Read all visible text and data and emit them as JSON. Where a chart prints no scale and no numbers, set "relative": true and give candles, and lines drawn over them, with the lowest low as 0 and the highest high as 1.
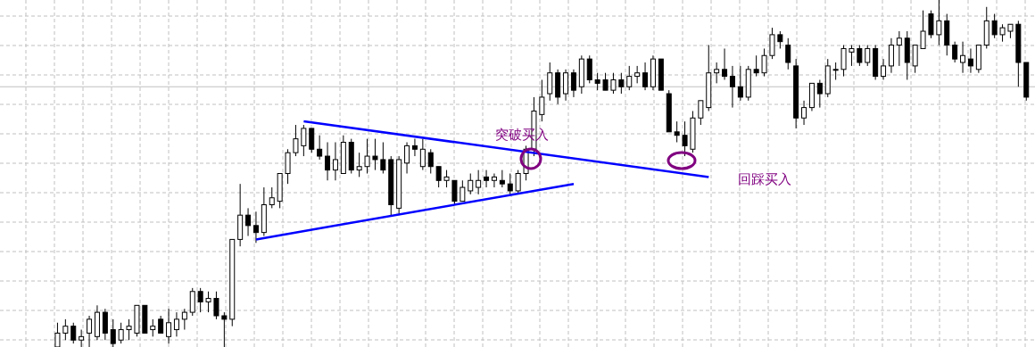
{
  "chart_data": {
    "type": "candlestick",
    "relative": true,
    "grid": true,
    "categories": [
      null,
      null,
      null,
      null,
      null,
      null,
      null,
      null,
      null,
      null,
      null,
      null,
      null,
      null,
      null,
      null,
      null,
      null,
      null,
      null,
      null,
      null,
      null,
      null,
      null,
      null,
      null,
      null,
      null,
      null,
      null,
      null,
      null,
      null,
      null,
      null,
      null,
      null,
      null,
      null,
      null,
      null,
      null,
      null,
      null,
      null,
      null,
      null,
      null,
      null,
      null,
      null,
      null,
      null,
      null,
      null,
      null,
      null,
      null,
      null,
      null,
      null,
      null,
      null,
      null,
      null,
      null,
      null,
      null,
      null,
      null,
      null,
      null,
      null,
      null,
      null,
      null,
      null,
      null,
      null,
      null,
      null,
      null,
      null,
      null,
      null,
      null,
      null,
      null,
      null,
      null,
      null,
      null,
      null,
      null,
      null,
      null,
      null,
      null,
      null,
      null,
      null,
      null,
      null,
      null,
      null,
      null,
      null,
      null,
      null,
      null,
      null,
      null,
      null,
      null,
      null,
      null,
      null,
      null,
      null,
      null,
      null,
      null
    ],
    "ohlc": [
      [
        0,
        0.07,
        0,
        0.04
      ],
      [
        0.04,
        0.08,
        0.02,
        0.06
      ],
      [
        0.06,
        0.07,
        0.01,
        0.02
      ],
      [
        0.02,
        0.05,
        0,
        0.03
      ],
      [
        0.04,
        0.09,
        0,
        0.08
      ],
      [
        0.03,
        0.12,
        0.02,
        0.1
      ],
      [
        0.1,
        0.11,
        0.02,
        0.04
      ],
      [
        0.05,
        0.08,
        0,
        0.01
      ],
      [
        0.02,
        0.07,
        0.01,
        0.05
      ],
      [
        0.05,
        0.08,
        0.02,
        0.06
      ],
      [
        0.04,
        0.12,
        0.03,
        0.12
      ],
      [
        0.12,
        0.12,
        0.04,
        0.04
      ],
      [
        0.05,
        0.08,
        0.03,
        0.06
      ],
      [
        0.08,
        0.09,
        0.04,
        0.04
      ],
      [
        0.03,
        0.11,
        0.01,
        0.07
      ],
      [
        0.05,
        0.1,
        0.03,
        0.08
      ],
      [
        0.08,
        0.11,
        0.05,
        0.1
      ],
      [
        0.1,
        0.17,
        0.09,
        0.16
      ],
      [
        0.16,
        0.17,
        0.1,
        0.13
      ],
      [
        0.13,
        0.16,
        0.1,
        0.14
      ],
      [
        0.14,
        0.16,
        0.08,
        0.09
      ],
      [
        0.09,
        0.1,
        0,
        0.08
      ],
      [
        0.08,
        0.31,
        0.06,
        0.31
      ],
      [
        0.31,
        0.47,
        0.29,
        0.38
      ],
      [
        0.38,
        0.4,
        0.32,
        0.35
      ],
      [
        0.35,
        0.39,
        0.3,
        0.33
      ],
      [
        0.33,
        0.46,
        0.32,
        0.41
      ],
      [
        0.41,
        0.46,
        0.4,
        0.43
      ],
      [
        0.42,
        0.5,
        0.4,
        0.5
      ],
      [
        0.5,
        0.57,
        0.47,
        0.56
      ],
      [
        0.56,
        0.64,
        0.55,
        0.6
      ],
      [
        0.58,
        0.64,
        0.55,
        0.63
      ],
      [
        0.63,
        0.63,
        0.56,
        0.57
      ],
      [
        0.57,
        0.61,
        0.54,
        0.55
      ],
      [
        0.55,
        0.59,
        0.48,
        0.51
      ],
      [
        0.51,
        0.59,
        0.48,
        0.54
      ],
      [
        0.5,
        0.61,
        0.5,
        0.59
      ],
      [
        0.59,
        0.6,
        0.5,
        0.51
      ],
      [
        0.51,
        0.56,
        0.49,
        0.52
      ],
      [
        0.52,
        0.6,
        0.5,
        0.55
      ],
      [
        0.55,
        0.6,
        0.51,
        0.54
      ],
      [
        0.54,
        0.59,
        0.5,
        0.51
      ],
      [
        0.54,
        0.55,
        0.38,
        0.41
      ],
      [
        0.4,
        0.55,
        0.38,
        0.54
      ],
      [
        0.53,
        0.59,
        0.5,
        0.58
      ],
      [
        0.58,
        0.6,
        0.55,
        0.57
      ],
      [
        0.52,
        0.6,
        0.51,
        0.57
      ],
      [
        0.56,
        0.57,
        0.5,
        0.52
      ],
      [
        0.52,
        0.52,
        0.46,
        0.48
      ],
      [
        0.48,
        0.51,
        0.46,
        0.49
      ],
      [
        0.48,
        0.48,
        0.41,
        0.42
      ],
      [
        0.42,
        0.48,
        0.42,
        0.46
      ],
      [
        0.45,
        0.5,
        0.44,
        0.48
      ],
      [
        0.46,
        0.51,
        0.44,
        0.48
      ],
      [
        0.49,
        0.51,
        0.46,
        0.48
      ],
      [
        0.48,
        0.5,
        0.46,
        0.49
      ],
      [
        0.48,
        0.51,
        0.46,
        0.47
      ],
      [
        0.47,
        0.5,
        0.44,
        0.45
      ],
      [
        0.45,
        0.51,
        0.44,
        0.5
      ],
      [
        0.5,
        0.58,
        0.48,
        0.57
      ],
      [
        0.57,
        0.72,
        0.55,
        0.68
      ],
      [
        0.67,
        0.77,
        0.65,
        0.72
      ],
      [
        0.73,
        0.82,
        0.71,
        0.79
      ],
      [
        0.79,
        0.8,
        0.7,
        0.72
      ],
      [
        0.73,
        0.8,
        0.71,
        0.79
      ],
      [
        0.79,
        0.8,
        0.72,
        0.74
      ],
      [
        0.75,
        0.84,
        0.73,
        0.83
      ],
      [
        0.83,
        0.84,
        0.76,
        0.77
      ],
      [
        0.77,
        0.79,
        0.74,
        0.76
      ],
      [
        0.77,
        0.79,
        0.74,
        0.74
      ],
      [
        0.74,
        0.79,
        0.73,
        0.77
      ],
      [
        0.77,
        0.79,
        0.73,
        0.75
      ],
      [
        0.75,
        0.81,
        0.74,
        0.78
      ],
      [
        0.78,
        0.81,
        0.76,
        0.79
      ],
      [
        0.79,
        0.82,
        0.74,
        0.75
      ],
      [
        0.75,
        0.84,
        0.74,
        0.83
      ],
      [
        0.83,
        0.83,
        0.74,
        0.74
      ],
      [
        0.73,
        0.74,
        0.62,
        0.62
      ],
      [
        0.62,
        0.65,
        0.59,
        0.61
      ],
      [
        0.61,
        0.65,
        0.55,
        0.58
      ],
      [
        0.57,
        0.68,
        0.56,
        0.66
      ],
      [
        0.66,
        0.71,
        0.64,
        0.71
      ],
      [
        0.69,
        0.87,
        0.68,
        0.79
      ],
      [
        0.79,
        0.82,
        0.76,
        0.8
      ],
      [
        0.8,
        0.86,
        0.77,
        0.78
      ],
      [
        0.78,
        0.81,
        0.69,
        0.75
      ],
      [
        0.75,
        0.81,
        0.71,
        0.72
      ],
      [
        0.72,
        0.81,
        0.71,
        0.8
      ],
      [
        0.8,
        0.84,
        0.78,
        0.79
      ],
      [
        0.79,
        0.86,
        0.78,
        0.84
      ],
      [
        0.84,
        0.92,
        0.83,
        0.9
      ],
      [
        0.9,
        0.91,
        0.86,
        0.88
      ],
      [
        0.87,
        0.89,
        0.8,
        0.82
      ],
      [
        0.81,
        0.83,
        0.63,
        0.66
      ],
      [
        0.66,
        0.71,
        0.64,
        0.69
      ],
      [
        0.69,
        0.76,
        0.68,
        0.76
      ],
      [
        0.76,
        0.77,
        0.69,
        0.73
      ],
      [
        0.73,
        0.83,
        0.72,
        0.81
      ],
      [
        0.8,
        0.82,
        0.77,
        0.8
      ],
      [
        0.8,
        0.87,
        0.78,
        0.86
      ],
      [
        0.85,
        0.87,
        0.81,
        0.86
      ],
      [
        0.86,
        0.87,
        0.81,
        0.82
      ],
      [
        0.82,
        0.87,
        0.81,
        0.86
      ],
      [
        0.86,
        0.87,
        0.77,
        0.78
      ],
      [
        0.78,
        0.83,
        0.77,
        0.81
      ],
      [
        0.81,
        0.89,
        0.79,
        0.87
      ],
      [
        0.87,
        0.91,
        0.81,
        0.89
      ],
      [
        0.89,
        0.91,
        0.77,
        0.82
      ],
      [
        0.81,
        0.87,
        0.79,
        0.87
      ],
      [
        0.86,
        0.97,
        0.86,
        0.91
      ],
      [
        0.96,
        0.97,
        0.89,
        0.9
      ],
      [
        0.9,
        1.0,
        0.87,
        0.94
      ],
      [
        0.94,
        0.96,
        0.84,
        0.87
      ],
      [
        0.87,
        0.88,
        0.82,
        0.83
      ],
      [
        0.82,
        0.88,
        0.79,
        0.84
      ],
      [
        0.83,
        0.86,
        0.79,
        0.81
      ],
      [
        0.8,
        0.87,
        0.79,
        0.87
      ],
      [
        0.87,
        0.98,
        0.86,
        0.94
      ],
      [
        0.94,
        0.96,
        0.89,
        0.9
      ],
      [
        0.9,
        0.93,
        0.88,
        0.92
      ],
      [
        0.91,
        0.93,
        0.89,
        0.93
      ],
      [
        0.93,
        0.94,
        0.75,
        0.82
      ],
      [
        0.82,
        0.82,
        0.71,
        0.72
      ]
    ],
    "series": [
      {
        "type": "line",
        "color": "#0000ff",
        "values": [
          null,
          null,
          null,
          null,
          null,
          null,
          null,
          null,
          null,
          null,
          null,
          null,
          null,
          null,
          null,
          null,
          null,
          null,
          null,
          null,
          null,
          null,
          null,
          null,
          null,
          null,
          null,
          null,
          null,
          null,
          null,
          0.65,
          null,
          null,
          null,
          null,
          null,
          null,
          null,
          null,
          null,
          null,
          null,
          null,
          null,
          null,
          null,
          null,
          null,
          null,
          null,
          null,
          null,
          null,
          null,
          null,
          null,
          null,
          null,
          null,
          null,
          null,
          null,
          null,
          null,
          null,
          null,
          null,
          null,
          null,
          null,
          null,
          null,
          null,
          null,
          null,
          null,
          null,
          null,
          null,
          null,
          null,
          0.49,
          null,
          null,
          null,
          null,
          null,
          null,
          null,
          null,
          null,
          null,
          null,
          null,
          null,
          null,
          null,
          null,
          null,
          null,
          null,
          null,
          null,
          null,
          null,
          null,
          null,
          null,
          null,
          null,
          null,
          null,
          null,
          null,
          null,
          null,
          null,
          null,
          null,
          null,
          null,
          null
        ]
      },
      {
        "type": "line",
        "color": "#0000ff",
        "values": [
          null,
          null,
          null,
          null,
          null,
          null,
          null,
          null,
          null,
          null,
          null,
          null,
          null,
          null,
          null,
          null,
          null,
          null,
          null,
          null,
          null,
          null,
          null,
          null,
          null,
          0.31,
          null,
          null,
          null,
          null,
          null,
          null,
          null,
          null,
          null,
          null,
          null,
          null,
          null,
          null,
          null,
          null,
          null,
          null,
          null,
          null,
          null,
          null,
          null,
          null,
          null,
          null,
          null,
          null,
          null,
          null,
          null,
          null,
          null,
          null,
          null,
          null,
          null,
          null,
          null,
          0.47,
          null,
          null,
          null,
          null,
          null,
          null,
          null,
          null,
          null,
          null,
          null,
          null,
          null,
          null,
          null,
          null,
          null,
          null,
          null,
          null,
          null,
          null,
          null,
          null,
          null,
          null,
          null,
          null,
          null,
          null,
          null,
          null,
          null,
          null,
          null,
          null,
          null,
          null,
          null,
          null,
          null,
          null,
          null,
          null,
          null,
          null,
          null,
          null,
          null,
          null,
          null,
          null,
          null,
          null,
          null,
          null,
          null
        ]
      }
    ],
    "ref_lines": [
      {
        "axis": "y",
        "value": 0.75,
        "color": "#c0c0c0"
      }
    ],
    "annotations": [
      "突破买入",
      "回踩买入"
    ]
  }
}
